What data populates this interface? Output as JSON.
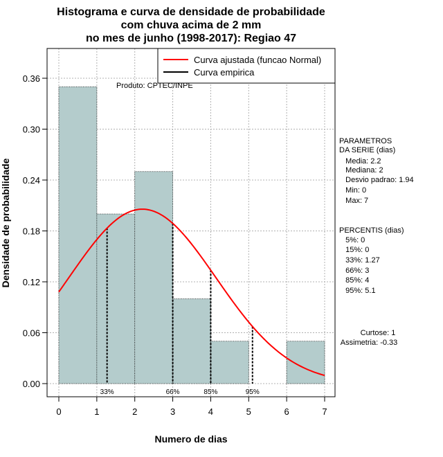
{
  "chart_data": {
    "type": "bar",
    "title_lines": [
      "Histograma e curva de densidade de probabilidade",
      "com chuva acima de 2 mm",
      "no mes de junho (1998-2017): Regiao 47"
    ],
    "xlabel": "Numero de dias",
    "ylabel": "Densidade de probabilidade",
    "xlim": [
      0,
      7
    ],
    "ylim": [
      0,
      0.36
    ],
    "x_ticks": [
      "0",
      "1",
      "2",
      "3",
      "4",
      "5",
      "6",
      "7"
    ],
    "y_ticks": [
      "0.00",
      "0.06",
      "0.12",
      "0.18",
      "0.24",
      "0.30",
      "0.36"
    ],
    "bins": [
      {
        "from": 0,
        "to": 1,
        "density": 0.35
      },
      {
        "from": 1,
        "to": 2,
        "density": 0.2
      },
      {
        "from": 2,
        "to": 3,
        "density": 0.25
      },
      {
        "from": 3,
        "to": 4,
        "density": 0.1
      },
      {
        "from": 4,
        "to": 5,
        "density": 0.05
      },
      {
        "from": 5,
        "to": 6,
        "density": 0.0
      },
      {
        "from": 6,
        "to": 7,
        "density": 0.05
      }
    ],
    "normal_fit": {
      "mean": 2.2,
      "sd": 1.94,
      "color": "#ff0000"
    },
    "percentile_markers": [
      {
        "x": 1.27,
        "label": "33%"
      },
      {
        "x": 3,
        "label": "66%"
      },
      {
        "x": 4,
        "label": "85%"
      },
      {
        "x": 5.1,
        "label": "95%"
      }
    ],
    "legend": {
      "placement": "top-right",
      "entries": [
        {
          "label": "Curva ajustada (funcao Normal)",
          "color": "#ff0000"
        },
        {
          "label": "Curva empirica",
          "color": "#000000"
        }
      ]
    },
    "credit": "Produto: CPTEC/INPE",
    "bar_color": "#b4cccc",
    "grid": true
  },
  "sidebar": {
    "parametros": [
      "PARAMETROS",
      "DA SERIE (dias)",
      "   Media: 2.2",
      "   Mediana: 2",
      "   Desvio padrao: 1.94",
      "   Min: 0",
      "   Max: 7"
    ],
    "percentis": [
      "PERCENTIS (dias)",
      "   5%: 0",
      "   15%: 0",
      "   33%: 1.27",
      "   66%: 3",
      "   85%: 4",
      "   95%: 5.1"
    ],
    "curtose": "Curtose: 1",
    "assimetria": "Assimetria: -0.33"
  }
}
